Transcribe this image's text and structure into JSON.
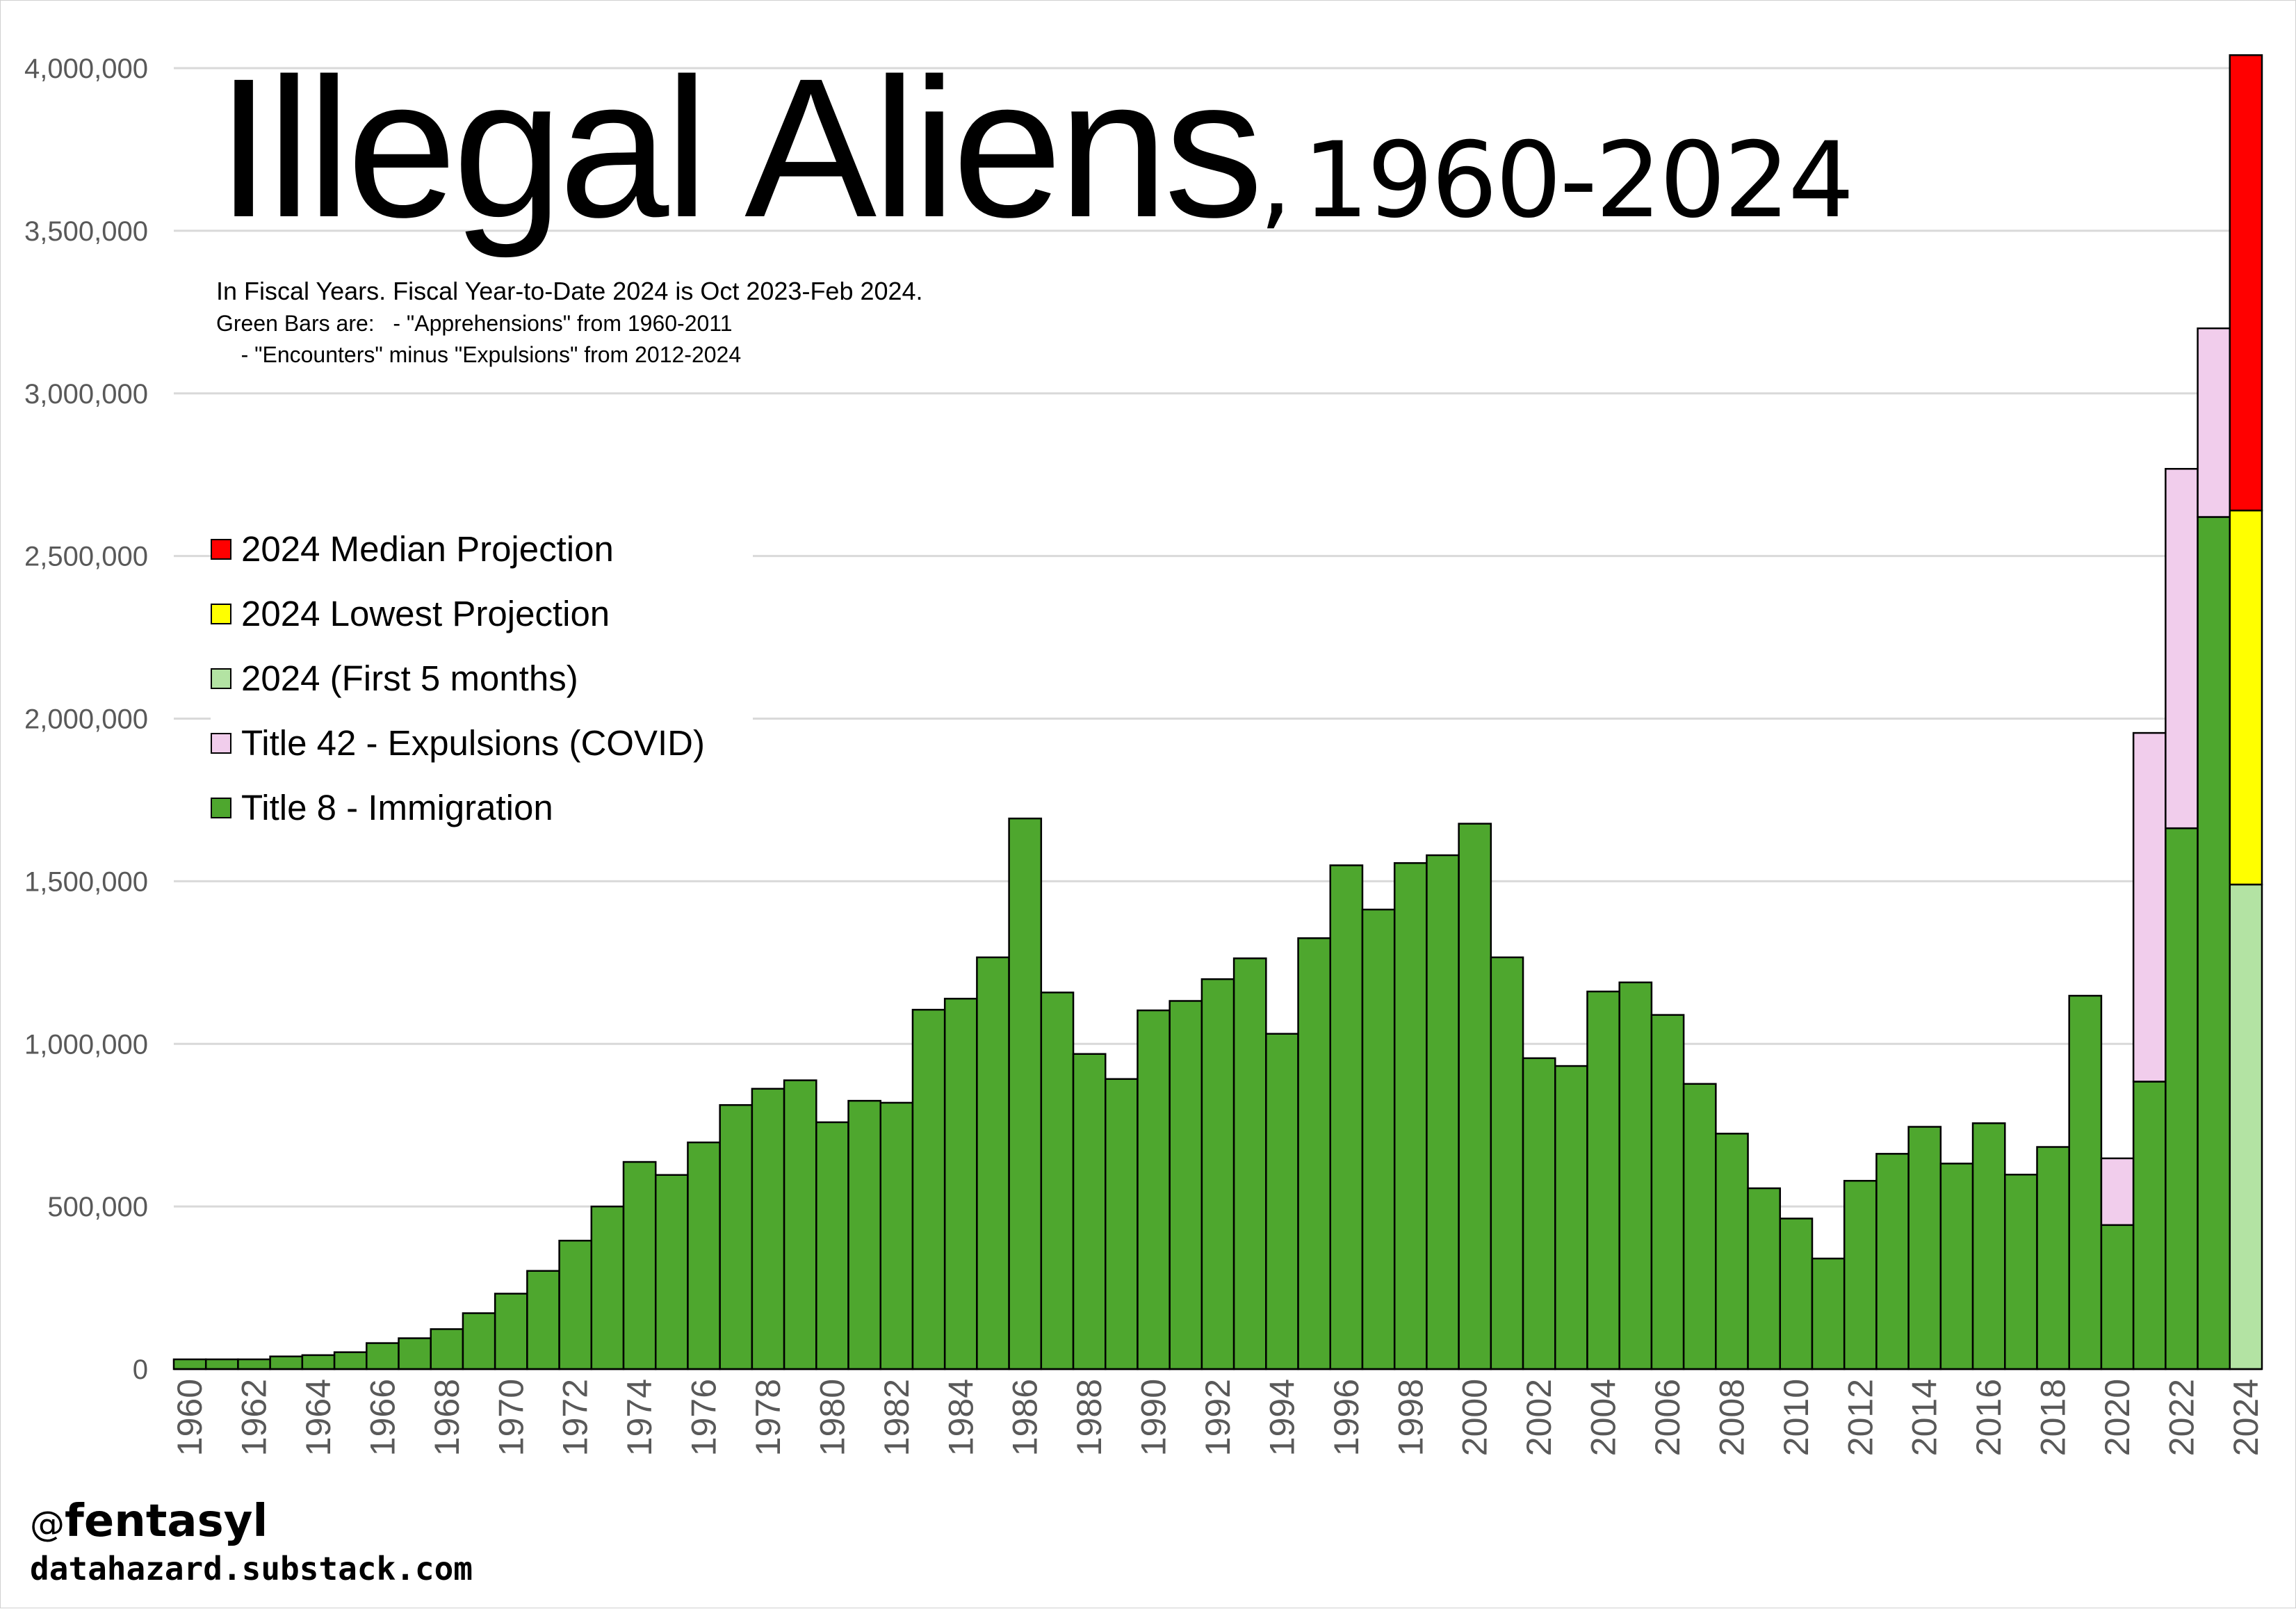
{
  "title": {
    "main": "Illegal Aliens",
    "comma": ",",
    "range": "1960-2024"
  },
  "notes": {
    "line1": "In Fiscal Years. Fiscal Year-to-Date 2024 is Oct 2023-Feb 2024.",
    "line2": "Green Bars are:   - \"Apprehensions\" from 1960-2011",
    "line3": "    - \"Encounters\" minus \"Expulsions\" from 2012-2024"
  },
  "credits": {
    "handle_at": "@",
    "handle": "fentasyl",
    "site": "datahazard.substack.com"
  },
  "colors": {
    "title8": "#4ea72e",
    "title42": "#f1cdec",
    "first5": "#b3e3a3",
    "lowest": "#ffff00",
    "median": "#ff0000",
    "grid": "#d9d9d9",
    "axis_text": "#595959"
  },
  "chart_data": {
    "type": "bar",
    "stacked": true,
    "ylim": [
      0,
      4000000
    ],
    "y_ticks": [
      0,
      500000,
      1000000,
      1500000,
      2000000,
      2500000,
      3000000,
      3500000,
      4000000
    ],
    "y_tick_labels": [
      "0",
      "500,000",
      "1,000,000",
      "1,500,000",
      "2,000,000",
      "2,500,000",
      "3,000,000",
      "3,500,000",
      "4,000,000"
    ],
    "grid": true,
    "legend_position": "left",
    "categories": [
      "1960",
      "1961",
      "1962",
      "1963",
      "1964",
      "1965",
      "1966",
      "1967",
      "1968",
      "1969",
      "1970",
      "1971",
      "1972",
      "1973",
      "1974",
      "1975",
      "1976",
      "1977",
      "1978",
      "1979",
      "1980",
      "1981",
      "1982",
      "1983",
      "1984",
      "1985",
      "1986",
      "1987",
      "1988",
      "1989",
      "1990",
      "1991",
      "1992",
      "1993",
      "1994",
      "1995",
      "1996",
      "1997",
      "1998",
      "1999",
      "2000",
      "2001",
      "2002",
      "2003",
      "2004",
      "2005",
      "2006",
      "2007",
      "2008",
      "2009",
      "2010",
      "2011",
      "2012",
      "2013",
      "2014",
      "2015",
      "2016",
      "2017",
      "2018",
      "2019",
      "2020",
      "2021",
      "2022",
      "2023",
      "2024"
    ],
    "x_tick_labels": [
      "1960",
      "1962",
      "1964",
      "1966",
      "1968",
      "1970",
      "1972",
      "1974",
      "1976",
      "1978",
      "1980",
      "1982",
      "1984",
      "1986",
      "1988",
      "1990",
      "1992",
      "1994",
      "1996",
      "1998",
      "2000",
      "2002",
      "2004",
      "2006",
      "2008",
      "2010",
      "2012",
      "2014",
      "2016",
      "2018",
      "2020",
      "2022",
      "2024"
    ],
    "legend": [
      {
        "label": "2024 Median Projection",
        "color": "#ff0000"
      },
      {
        "label": "2024 Lowest Projection",
        "color": "#ffff00"
      },
      {
        "label": "2024 (First 5 months)",
        "color": "#b3e3a3"
      },
      {
        "label": "Title 42 - Expulsions (COVID)",
        "color": "#f1cdec"
      },
      {
        "label": "Title 8 - Immigration",
        "color": "#4ea72e"
      }
    ],
    "series": [
      {
        "name": "Title 8 - Immigration",
        "color": "#4ea72e",
        "values": [
          30000,
          30000,
          30000,
          39000,
          43000,
          52000,
          80000,
          95000,
          123000,
          172000,
          232000,
          302000,
          395000,
          500000,
          637000,
          597000,
          697000,
          812000,
          862000,
          888000,
          759000,
          825000,
          819000,
          1105000,
          1139000,
          1266000,
          1693000,
          1158000,
          969000,
          892000,
          1103000,
          1132000,
          1199000,
          1263000,
          1031000,
          1325000,
          1549000,
          1413000,
          1556000,
          1580000,
          1677000,
          1266000,
          956000,
          932000,
          1161000,
          1189000,
          1089000,
          877000,
          724000,
          556000,
          463000,
          340000,
          579000,
          662000,
          745000,
          632000,
          756000,
          598000,
          683000,
          1148000,
          443000,
          884000,
          1663000,
          2620000,
          null
        ]
      },
      {
        "name": "Title 42 - Expulsions (COVID)",
        "color": "#f1cdec",
        "values": [
          null,
          null,
          null,
          null,
          null,
          null,
          null,
          null,
          null,
          null,
          null,
          null,
          null,
          null,
          null,
          null,
          null,
          null,
          null,
          null,
          null,
          null,
          null,
          null,
          null,
          null,
          null,
          null,
          null,
          null,
          null,
          null,
          null,
          null,
          null,
          null,
          null,
          null,
          null,
          null,
          null,
          null,
          null,
          null,
          null,
          null,
          null,
          null,
          null,
          null,
          null,
          null,
          null,
          null,
          null,
          null,
          null,
          null,
          null,
          null,
          205000,
          1072000,
          1105000,
          580000,
          null
        ]
      },
      {
        "name": "2024 (First 5 months)",
        "color": "#b3e3a3",
        "values": [
          null,
          null,
          null,
          null,
          null,
          null,
          null,
          null,
          null,
          null,
          null,
          null,
          null,
          null,
          null,
          null,
          null,
          null,
          null,
          null,
          null,
          null,
          null,
          null,
          null,
          null,
          null,
          null,
          null,
          null,
          null,
          null,
          null,
          null,
          null,
          null,
          null,
          null,
          null,
          null,
          null,
          null,
          null,
          null,
          null,
          null,
          null,
          null,
          null,
          null,
          null,
          null,
          null,
          null,
          null,
          null,
          null,
          null,
          null,
          null,
          null,
          null,
          null,
          null,
          1490000
        ]
      },
      {
        "name": "2024 Lowest Projection",
        "color": "#ffff00",
        "values": [
          null,
          null,
          null,
          null,
          null,
          null,
          null,
          null,
          null,
          null,
          null,
          null,
          null,
          null,
          null,
          null,
          null,
          null,
          null,
          null,
          null,
          null,
          null,
          null,
          null,
          null,
          null,
          null,
          null,
          null,
          null,
          null,
          null,
          null,
          null,
          null,
          null,
          null,
          null,
          null,
          null,
          null,
          null,
          null,
          null,
          null,
          null,
          null,
          null,
          null,
          null,
          null,
          null,
          null,
          null,
          null,
          null,
          null,
          null,
          null,
          null,
          null,
          null,
          null,
          1150000
        ]
      },
      {
        "name": "2024 Median Projection",
        "color": "#ff0000",
        "values": [
          null,
          null,
          null,
          null,
          null,
          null,
          null,
          null,
          null,
          null,
          null,
          null,
          null,
          null,
          null,
          null,
          null,
          null,
          null,
          null,
          null,
          null,
          null,
          null,
          null,
          null,
          null,
          null,
          null,
          null,
          null,
          null,
          null,
          null,
          null,
          null,
          null,
          null,
          null,
          null,
          null,
          null,
          null,
          null,
          null,
          null,
          null,
          null,
          null,
          null,
          null,
          null,
          null,
          null,
          null,
          null,
          null,
          null,
          null,
          null,
          null,
          null,
          null,
          null,
          1400000
        ]
      }
    ]
  }
}
